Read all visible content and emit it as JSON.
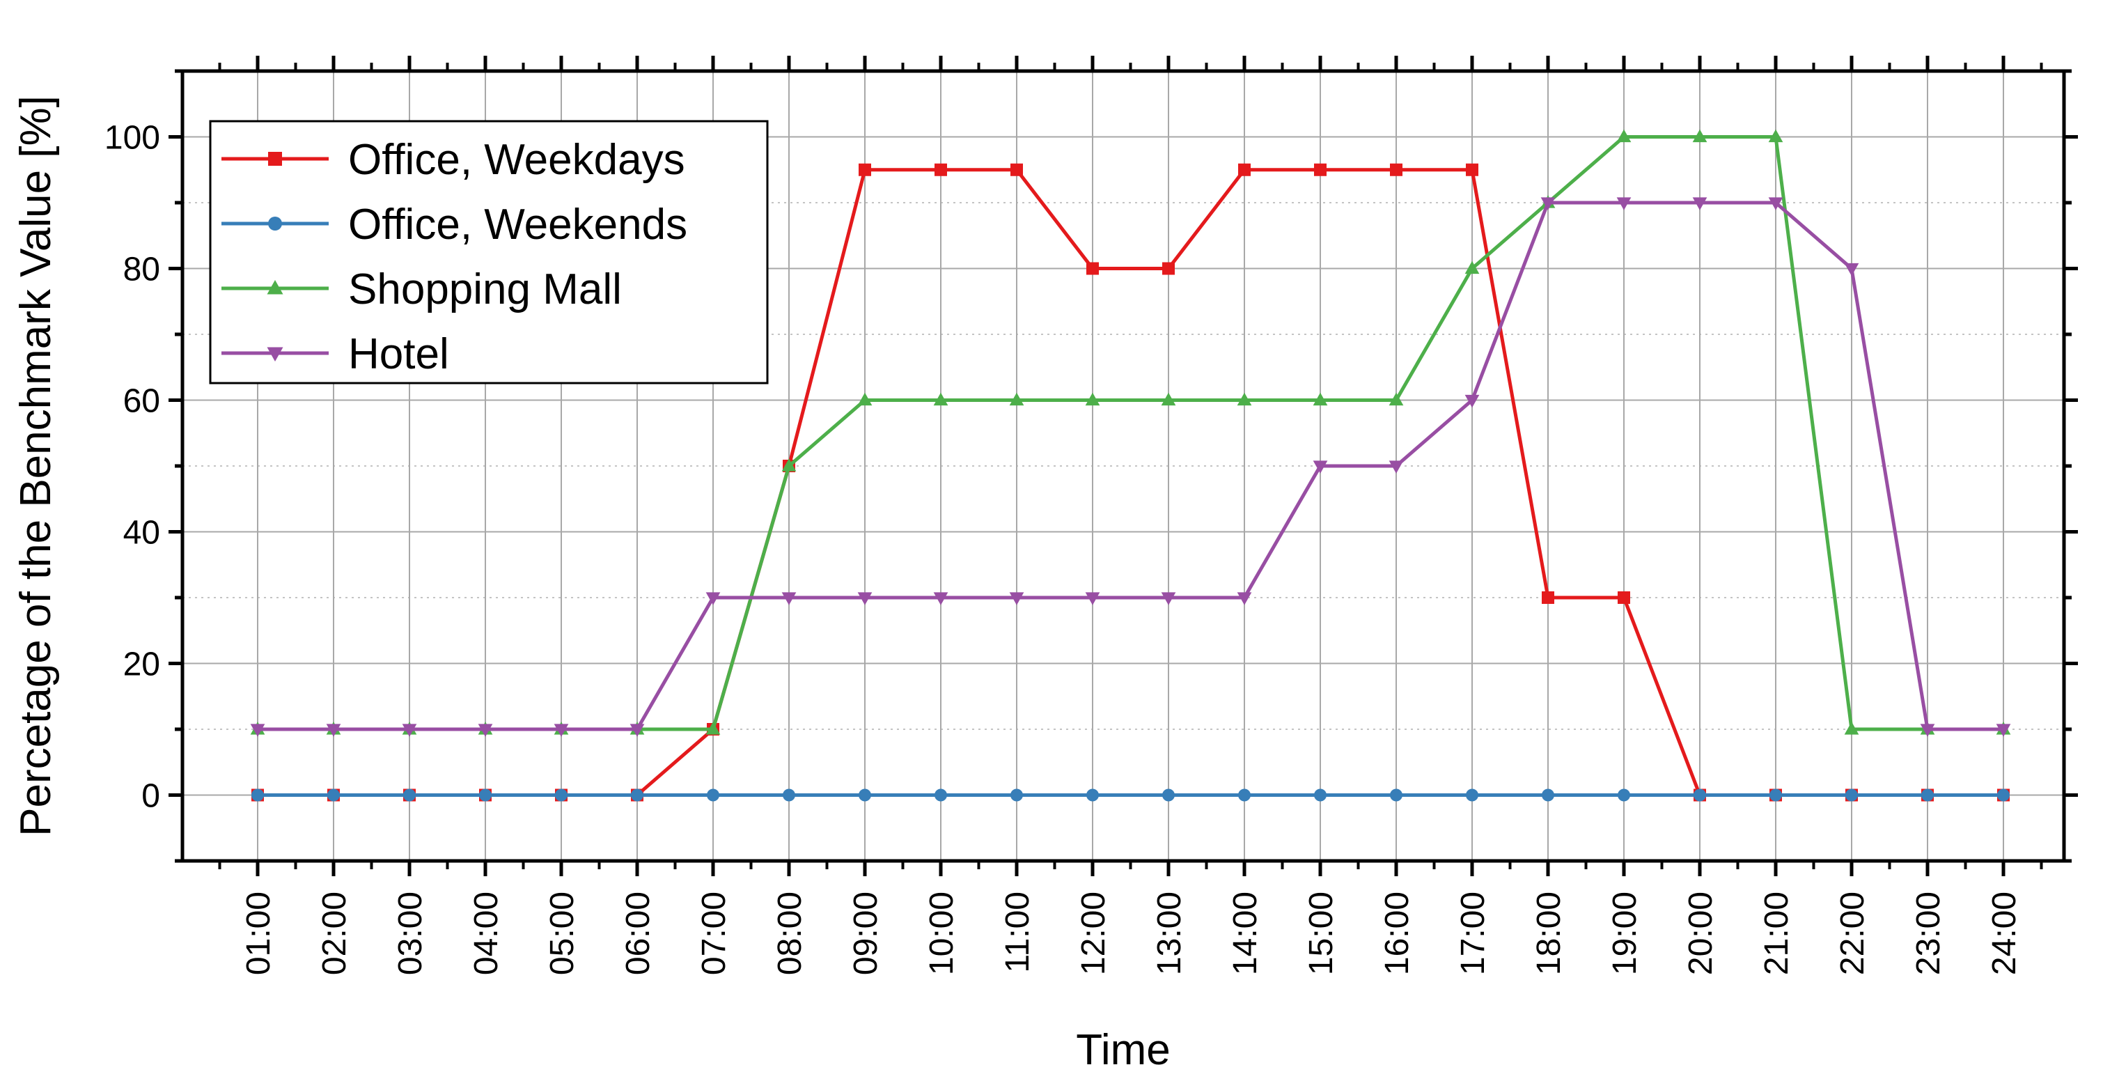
{
  "chart_data": {
    "type": "line",
    "xlabel": "Time",
    "ylabel": "Percetage of the Benchmark Value [%]",
    "ylim": [
      -10,
      110
    ],
    "yticks": [
      0,
      20,
      40,
      60,
      80,
      100
    ],
    "grid": true,
    "legend_position": "top-left",
    "x": [
      "01:00",
      "02:00",
      "03:00",
      "04:00",
      "05:00",
      "06:00",
      "07:00",
      "08:00",
      "09:00",
      "10:00",
      "11:00",
      "12:00",
      "13:00",
      "14:00",
      "15:00",
      "16:00",
      "17:00",
      "18:00",
      "19:00",
      "20:00",
      "21:00",
      "22:00",
      "23:00",
      "24:00"
    ],
    "series": [
      {
        "name": "Office, Weekdays",
        "color": "#e41a1c",
        "marker": "square",
        "values": [
          0,
          0,
          0,
          0,
          0,
          0,
          10,
          50,
          95,
          95,
          95,
          80,
          80,
          95,
          95,
          95,
          95,
          30,
          30,
          0,
          0,
          0,
          0,
          0
        ]
      },
      {
        "name": "Office, Weekends",
        "color": "#377eb8",
        "marker": "circle",
        "values": [
          0,
          0,
          0,
          0,
          0,
          0,
          0,
          0,
          0,
          0,
          0,
          0,
          0,
          0,
          0,
          0,
          0,
          0,
          0,
          0,
          0,
          0,
          0,
          0
        ]
      },
      {
        "name": "Shopping Mall",
        "color": "#4daf4a",
        "marker": "triangle-up",
        "values": [
          10,
          10,
          10,
          10,
          10,
          10,
          10,
          50,
          60,
          60,
          60,
          60,
          60,
          60,
          60,
          60,
          80,
          90,
          100,
          100,
          100,
          10,
          10,
          10
        ]
      },
      {
        "name": "Hotel",
        "color": "#984ea3",
        "marker": "triangle-down",
        "values": [
          10,
          10,
          10,
          10,
          10,
          10,
          30,
          30,
          30,
          30,
          30,
          30,
          30,
          30,
          50,
          50,
          60,
          90,
          90,
          90,
          90,
          80,
          10,
          10
        ]
      }
    ]
  }
}
